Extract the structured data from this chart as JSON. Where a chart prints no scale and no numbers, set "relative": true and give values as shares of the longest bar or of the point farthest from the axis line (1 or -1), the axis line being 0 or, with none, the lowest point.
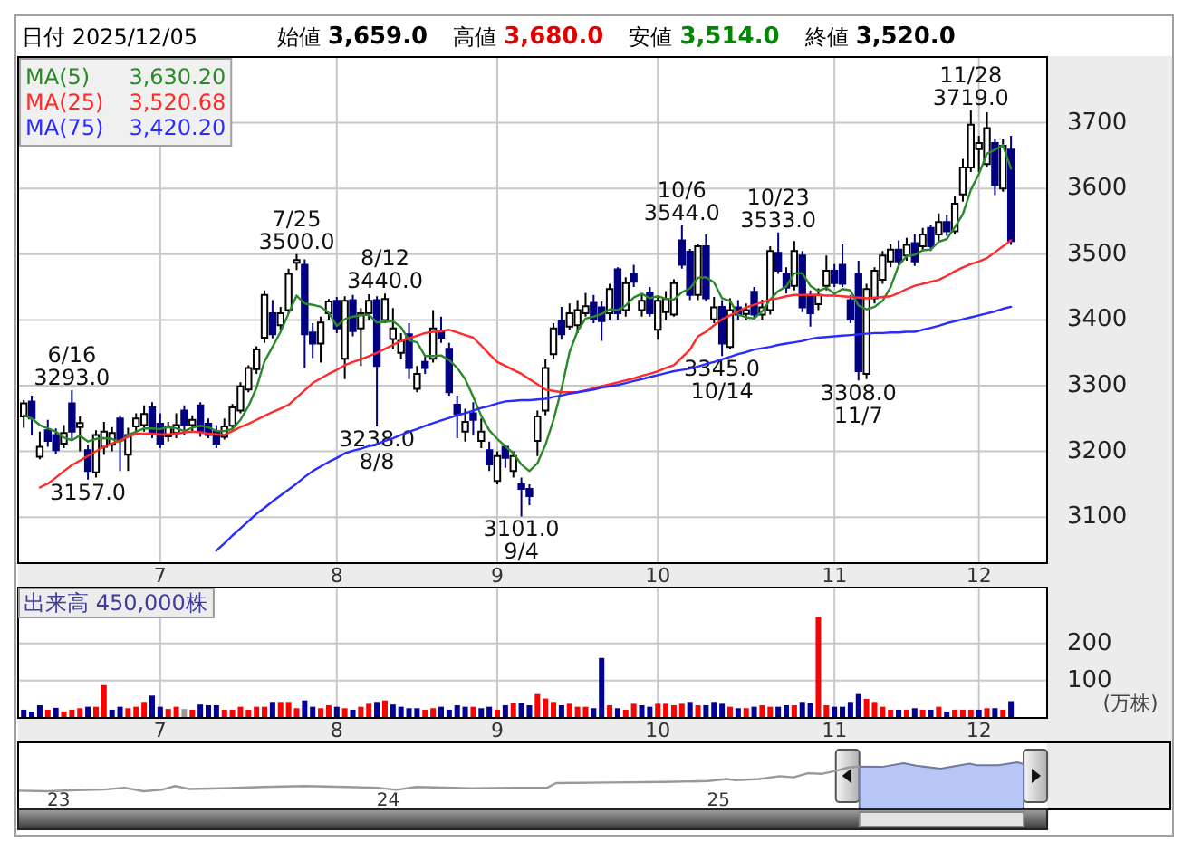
{
  "chart_data": [
    {
      "type": "other",
      "annotations": [
        "日付 2025/12/05",
        "始値",
        "3,659.0",
        "高値",
        "3,680.0",
        "安値",
        "3,514.0",
        "終値",
        "3,520.0"
      ]
    },
    {
      "type": "candlestick",
      "categories": [
        null,
        null,
        null,
        null,
        null,
        null,
        null,
        null,
        null,
        null,
        null,
        null,
        null,
        null,
        null,
        null,
        null,
        "7",
        null,
        null,
        null,
        null,
        null,
        null,
        null,
        null,
        null,
        null,
        null,
        null,
        null,
        null,
        null,
        null,
        null,
        null,
        null,
        null,
        null,
        "8",
        null,
        null,
        null,
        null,
        null,
        null,
        null,
        null,
        null,
        null,
        null,
        null,
        null,
        null,
        null,
        null,
        null,
        null,
        null,
        "9",
        null,
        null,
        null,
        null,
        null,
        null,
        null,
        null,
        null,
        null,
        null,
        null,
        null,
        null,
        null,
        null,
        null,
        null,
        null,
        "10",
        null,
        null,
        null,
        null,
        null,
        null,
        null,
        null,
        null,
        null,
        null,
        null,
        null,
        null,
        null,
        null,
        null,
        null,
        null,
        null,
        null,
        "11",
        null,
        null,
        null,
        null,
        null,
        null,
        null,
        null,
        null,
        null,
        null,
        null,
        null,
        null,
        null,
        null,
        null,
        "12",
        null,
        null,
        null,
        null
      ],
      "ohlc": [
        [
          3253,
          3278,
          3236,
          3273
        ],
        [
          3276,
          3285,
          3225,
          3250
        ],
        [
          3192,
          3230,
          3188,
          3207
        ],
        [
          3232,
          3248,
          3207,
          3216
        ],
        [
          3225,
          3235,
          3196,
          3202
        ],
        [
          3212,
          3240,
          3205,
          3228
        ],
        [
          3273,
          3293,
          3216,
          3230
        ],
        [
          3237,
          3253,
          3200,
          3243
        ],
        [
          3202,
          3210,
          3157,
          3170
        ],
        [
          3168,
          3232,
          3160,
          3225
        ],
        [
          3207,
          3245,
          3195,
          3230
        ],
        [
          3210,
          3237,
          3200,
          3228
        ],
        [
          3250,
          3255,
          3170,
          3217
        ],
        [
          3195,
          3236,
          3170,
          3225
        ],
        [
          3238,
          3258,
          3230,
          3250
        ],
        [
          3240,
          3270,
          3230,
          3257
        ],
        [
          3267,
          3275,
          3220,
          3227
        ],
        [
          3242,
          3258,
          3205,
          3212
        ],
        [
          3223,
          3245,
          3215,
          3238
        ],
        [
          3228,
          3258,
          3220,
          3240
        ],
        [
          3262,
          3270,
          3225,
          3240
        ],
        [
          3240,
          3255,
          3230,
          3248
        ],
        [
          3270,
          3275,
          3222,
          3230
        ],
        [
          3242,
          3250,
          3220,
          3225
        ],
        [
          3230,
          3240,
          3205,
          3212
        ],
        [
          3222,
          3250,
          3218,
          3238
        ],
        [
          3239,
          3272,
          3232,
          3267
        ],
        [
          3262,
          3305,
          3258,
          3299
        ],
        [
          3294,
          3331,
          3290,
          3327
        ],
        [
          3325,
          3360,
          3318,
          3355
        ],
        [
          3373,
          3445,
          3365,
          3438
        ],
        [
          3410,
          3430,
          3372,
          3378
        ],
        [
          3392,
          3420,
          3385,
          3410
        ],
        [
          3415,
          3478,
          3410,
          3470
        ],
        [
          3487,
          3500,
          3476,
          3491
        ],
        [
          3484,
          3492,
          3327,
          3378
        ],
        [
          3381,
          3395,
          3342,
          3364
        ],
        [
          3364,
          3405,
          3335,
          3396
        ],
        [
          3410,
          3432,
          3400,
          3428
        ],
        [
          3429,
          3435,
          3380,
          3387
        ],
        [
          3341,
          3436,
          3310,
          3429
        ],
        [
          3430,
          3438,
          3375,
          3383
        ],
        [
          3387,
          3418,
          3330,
          3410
        ],
        [
          3410,
          3439,
          3400,
          3429
        ],
        [
          3430,
          3436,
          3238,
          3330
        ],
        [
          3400,
          3440,
          3395,
          3432
        ],
        [
          3371,
          3418,
          3355,
          3387
        ],
        [
          3350,
          3380,
          3340,
          3368
        ],
        [
          3378,
          3395,
          3310,
          3327
        ],
        [
          3295,
          3330,
          3290,
          3318
        ],
        [
          3336,
          3346,
          3318,
          3327
        ],
        [
          3341,
          3415,
          3335,
          3387
        ],
        [
          3382,
          3405,
          3365,
          3373
        ],
        [
          3356,
          3365,
          3285,
          3290
        ],
        [
          3271,
          3285,
          3220,
          3257
        ],
        [
          3230,
          3265,
          3215,
          3245
        ],
        [
          3258,
          3275,
          3225,
          3248
        ],
        [
          3216,
          3250,
          3205,
          3230
        ],
        [
          3202,
          3215,
          3170,
          3180
        ],
        [
          3155,
          3200,
          3150,
          3193
        ],
        [
          3207,
          3210,
          3175,
          3190
        ],
        [
          3170,
          3200,
          3160,
          3193
        ],
        [
          3150,
          3160,
          3101,
          3143
        ],
        [
          3143,
          3150,
          3118,
          3132
        ],
        [
          3216,
          3262,
          3193,
          3253
        ],
        [
          3262,
          3340,
          3255,
          3327
        ],
        [
          3348,
          3395,
          3340,
          3387
        ],
        [
          3399,
          3420,
          3370,
          3378
        ],
        [
          3390,
          3425,
          3385,
          3410
        ],
        [
          3392,
          3430,
          3380,
          3415
        ],
        [
          3410,
          3441,
          3405,
          3421
        ],
        [
          3426,
          3438,
          3395,
          3401
        ],
        [
          3419,
          3428,
          3368,
          3398
        ],
        [
          3410,
          3455,
          3400,
          3447
        ],
        [
          3477,
          3480,
          3400,
          3410
        ],
        [
          3415,
          3465,
          3405,
          3456
        ],
        [
          3470,
          3484,
          3450,
          3458
        ],
        [
          3415,
          3438,
          3405,
          3429
        ],
        [
          3442,
          3450,
          3405,
          3410
        ],
        [
          3385,
          3437,
          3370,
          3429
        ],
        [
          3412,
          3444,
          3400,
          3432
        ],
        [
          3408,
          3462,
          3405,
          3456
        ],
        [
          3521,
          3544,
          3478,
          3484
        ],
        [
          3504,
          3508,
          3430,
          3438
        ],
        [
          3438,
          3515,
          3430,
          3512
        ],
        [
          3512,
          3530,
          3428,
          3433
        ],
        [
          3401,
          3435,
          3395,
          3419
        ],
        [
          3420,
          3430,
          3345,
          3364
        ],
        [
          3359,
          3433,
          3355,
          3415
        ],
        [
          3419,
          3430,
          3400,
          3408
        ],
        [
          3409,
          3425,
          3400,
          3415
        ],
        [
          3443,
          3450,
          3402,
          3408
        ],
        [
          3408,
          3431,
          3400,
          3419
        ],
        [
          3415,
          3512,
          3408,
          3505
        ],
        [
          3502,
          3533,
          3470,
          3475
        ],
        [
          3470,
          3480,
          3440,
          3449
        ],
        [
          3452,
          3520,
          3445,
          3505
        ],
        [
          3498,
          3505,
          3412,
          3419
        ],
        [
          3438,
          3445,
          3390,
          3410
        ],
        [
          3424,
          3448,
          3415,
          3438
        ],
        [
          3452,
          3498,
          3445,
          3475
        ],
        [
          3475,
          3485,
          3450,
          3456
        ],
        [
          3484,
          3515,
          3450,
          3455
        ],
        [
          3430,
          3438,
          3395,
          3401
        ],
        [
          3470,
          3490,
          3308,
          3322
        ],
        [
          3318,
          3455,
          3310,
          3447
        ],
        [
          3433,
          3480,
          3425,
          3475
        ],
        [
          3461,
          3505,
          3455,
          3498
        ],
        [
          3489,
          3515,
          3480,
          3507
        ],
        [
          3507,
          3521,
          3480,
          3489
        ],
        [
          3498,
          3525,
          3490,
          3514
        ],
        [
          3517,
          3531,
          3482,
          3489
        ],
        [
          3512,
          3540,
          3505,
          3530
        ],
        [
          3540,
          3545,
          3505,
          3512
        ],
        [
          3530,
          3562,
          3520,
          3549
        ],
        [
          3549,
          3560,
          3528,
          3535
        ],
        [
          3535,
          3589,
          3530,
          3577
        ],
        [
          3591,
          3645,
          3580,
          3632
        ],
        [
          3632,
          3719,
          3625,
          3697
        ],
        [
          3660,
          3680,
          3625,
          3669
        ],
        [
          3637,
          3716,
          3632,
          3692
        ],
        [
          3669,
          3675,
          3590,
          3605
        ],
        [
          3600,
          3676,
          3595,
          3665
        ],
        [
          3659,
          3680,
          3514,
          3520
        ]
      ],
      "colors": [
        "#ffffff",
        "#000080",
        "#ffffff",
        "#000080",
        "#000080",
        "#ffffff",
        "#000080",
        "#ffffff",
        "#000080",
        "#ffffff",
        "#ffffff",
        "#ffffff",
        "#000080",
        "#ffffff",
        "#ffffff",
        "#ffffff",
        "#000080",
        "#000080",
        "#ffffff",
        "#ffffff",
        "#000080",
        "#ffffff",
        "#000080",
        "#000080",
        "#000080",
        "#ffffff",
        "#ffffff",
        "#ffffff",
        "#ffffff",
        "#ffffff",
        "#ffffff",
        "#000080",
        "#ffffff",
        "#ffffff",
        "#ffffff",
        "#000080",
        "#000080",
        "#ffffff",
        "#ffffff",
        "#000080",
        "#ffffff",
        "#000080",
        "#ffffff",
        "#ffffff",
        "#000080",
        "#ffffff",
        "#ffffff",
        "#ffffff",
        "#000080",
        "#ffffff",
        "#000080",
        "#ffffff",
        "#000080",
        "#000080",
        "#000080",
        "#ffffff",
        "#000080",
        "#ffffff",
        "#000080",
        "#ffffff",
        "#000080",
        "#ffffff",
        "#000080",
        "#000080",
        "#ffffff",
        "#ffffff",
        "#ffffff",
        "#000080",
        "#ffffff",
        "#ffffff",
        "#ffffff",
        "#000080",
        "#000080",
        "#ffffff",
        "#000080",
        "#ffffff",
        "#000080",
        "#ffffff",
        "#000080",
        "#ffffff",
        "#ffffff",
        "#ffffff",
        "#000080",
        "#000080",
        "#ffffff",
        "#000080",
        "#ffffff",
        "#000080",
        "#ffffff",
        "#000080",
        "#ffffff",
        "#000080",
        "#ffffff",
        "#ffffff",
        "#000080",
        "#000080",
        "#ffffff",
        "#000080",
        "#000080",
        "#ffffff",
        "#ffffff",
        "#000080",
        "#000080",
        "#000080",
        "#000080",
        "#ffffff",
        "#ffffff",
        "#ffffff",
        "#ffffff",
        "#000080",
        "#ffffff",
        "#000080",
        "#ffffff",
        "#000080",
        "#ffffff",
        "#000080",
        "#ffffff",
        "#ffffff",
        "#ffffff",
        "#ffffff",
        "#ffffff",
        "#000080",
        "#ffffff",
        "#000080"
      ],
      "series": [
        {
          "name": "MA(5) 3,630.20",
          "type": "line",
          "color": "#2a8a2a",
          "values": [
            3255,
            3250,
            3240,
            3235,
            3230,
            3221,
            3217,
            3224,
            3215,
            3219,
            3220,
            3219,
            3214,
            3225,
            3230,
            3235,
            3235,
            3234,
            3237,
            3235,
            3231,
            3236,
            3239,
            3237,
            3231,
            3231,
            3234,
            3248,
            3269,
            3297,
            3337,
            3359,
            3382,
            3410,
            3437,
            3425,
            3423,
            3420,
            3411,
            3391,
            3401,
            3405,
            3407,
            3408,
            3396,
            3397,
            3398,
            3389,
            3369,
            3366,
            3345,
            3345,
            3346,
            3339,
            3327,
            3310,
            3283,
            3254,
            3232,
            3219,
            3208,
            3197,
            3180,
            3170,
            3182,
            3210,
            3248,
            3295,
            3351,
            3383,
            3402,
            3405,
            3409,
            3416,
            3415,
            3422,
            3434,
            3440,
            3433,
            3436,
            3432,
            3431,
            3442,
            3448,
            3464,
            3465,
            3457,
            3433,
            3429,
            3408,
            3404,
            3402,
            3413,
            3431,
            3444,
            3451,
            3471,
            3471,
            3452,
            3444,
            3449,
            3440,
            3447,
            3445,
            3422,
            3416,
            3420,
            3429,
            3450,
            3483,
            3497,
            3499,
            3506,
            3507,
            3519,
            3523,
            3541,
            3561,
            3598,
            3622,
            3653,
            3659,
            3666,
            3630
          ]
        },
        {
          "name": "MA(25) 3,520.68",
          "type": "line",
          "color": "#ff2a2a",
          "values": [
            null,
            null,
            3145,
            3151,
            3160,
            3170,
            3179,
            3186,
            3193,
            3200,
            3207,
            3212,
            3217,
            3222,
            3227,
            3227,
            3227,
            3226,
            3226,
            3227,
            3229,
            3230,
            3229,
            3227,
            3226,
            3225,
            3231,
            3237,
            3242,
            3248,
            3254,
            3260,
            3265,
            3271,
            3282,
            3293,
            3304,
            3311,
            3318,
            3324,
            3331,
            3336,
            3340,
            3345,
            3350,
            3356,
            3362,
            3368,
            3372,
            3376,
            3380,
            3382,
            3383,
            3385,
            3381,
            3377,
            3373,
            3361,
            3348,
            3336,
            3330,
            3324,
            3318,
            3310,
            3302,
            3294,
            3292,
            3290,
            3290,
            3290,
            3293,
            3296,
            3299,
            3302,
            3305,
            3308,
            3311,
            3315,
            3318,
            3322,
            3327,
            3331,
            3343,
            3355,
            3375,
            3382,
            3392,
            3401,
            3407,
            3413,
            3419,
            3423,
            3427,
            3431,
            3433,
            3436,
            3438,
            3438,
            3438,
            3438,
            3437,
            3437,
            3436,
            3435,
            3434,
            3433,
            3434,
            3435,
            3436,
            3441,
            3447,
            3452,
            3455,
            3458,
            3461,
            3467,
            3474,
            3480,
            3485,
            3489,
            3494,
            3503,
            3512,
            3521
          ]
        },
        {
          "name": "MA(75) 3,420.20",
          "type": "line",
          "color": "#2b2bff",
          "values": [
            null,
            null,
            null,
            null,
            null,
            null,
            null,
            null,
            null,
            null,
            null,
            null,
            null,
            null,
            null,
            null,
            null,
            null,
            null,
            null,
            null,
            null,
            null,
            null,
            3049,
            3060,
            3072,
            3083,
            3094,
            3105,
            3114,
            3124,
            3133,
            3142,
            3151,
            3161,
            3170,
            3177,
            3184,
            3190,
            3197,
            3201,
            3204,
            3208,
            3211,
            3216,
            3220,
            3225,
            3230,
            3234,
            3239,
            3243,
            3247,
            3251,
            3255,
            3258,
            3262,
            3266,
            3269,
            3273,
            3276,
            3277,
            3278,
            3278,
            3279,
            3280,
            3283,
            3285,
            3288,
            3290,
            3292,
            3294,
            3297,
            3299,
            3301,
            3304,
            3307,
            3310,
            3313,
            3316,
            3319,
            3322,
            3324,
            3326,
            3329,
            3333,
            3336,
            3340,
            3344,
            3348,
            3351,
            3355,
            3357,
            3359,
            3362,
            3364,
            3366,
            3368,
            3371,
            3373,
            3374,
            3375,
            3376,
            3377,
            3378,
            3379,
            3380,
            3380,
            3381,
            3381,
            3382,
            3382,
            3385,
            3388,
            3391,
            3395,
            3398,
            3401,
            3404,
            3407,
            3410,
            3413,
            3417,
            3420
          ]
        }
      ],
      "ylim": [
        3030,
        3800
      ],
      "yticks": [
        3100,
        3200,
        3300,
        3400,
        3500,
        3600,
        3700
      ],
      "grid": true,
      "legend": "top left",
      "annotations": [
        {
          "text": "6/16\n3293.0",
          "y": 3293
        },
        {
          "text": "3157.0",
          "y": 3157
        },
        {
          "text": "7/25\n3500.0",
          "y": 3500
        },
        {
          "text": "8/12\n3440.0",
          "y": 3440
        },
        {
          "text": "3238.0\n8/8",
          "y": 3238
        },
        {
          "text": "3101.0\n9/4",
          "y": 3101
        },
        {
          "text": "10/6\n3544.0",
          "y": 3544
        },
        {
          "text": "3345.0\n10/14",
          "y": 3345
        },
        {
          "text": "10/23\n3533.0",
          "y": 3533
        },
        {
          "text": "3308.0\n11/7",
          "y": 3308
        },
        {
          "text": "11/28\n3719.0",
          "y": 3719
        }
      ]
    },
    {
      "type": "bar",
      "title": "出来高 450,000株",
      "ylabel": "(万株)",
      "categories": [
        null,
        null,
        null,
        null,
        null,
        null,
        null,
        null,
        null,
        null,
        null,
        null,
        null,
        null,
        null,
        null,
        null,
        "7",
        null,
        null,
        null,
        null,
        null,
        null,
        null,
        null,
        null,
        null,
        null,
        null,
        null,
        null,
        null,
        null,
        null,
        null,
        null,
        null,
        null,
        "8",
        null,
        null,
        null,
        null,
        null,
        null,
        null,
        null,
        null,
        null,
        null,
        null,
        null,
        null,
        null,
        null,
        null,
        null,
        null,
        "9",
        null,
        null,
        null,
        null,
        null,
        null,
        null,
        null,
        null,
        null,
        null,
        null,
        null,
        null,
        null,
        null,
        null,
        null,
        null,
        "10",
        null,
        null,
        null,
        null,
        null,
        null,
        null,
        null,
        null,
        null,
        null,
        null,
        null,
        null,
        null,
        null,
        null,
        null,
        null,
        null,
        null,
        "11",
        null,
        null,
        null,
        null,
        null,
        null,
        null,
        null,
        null,
        null,
        null,
        null,
        null,
        null,
        null,
        null,
        null,
        "12",
        null,
        null,
        null,
        null
      ],
      "values": [
        22,
        17,
        34,
        22,
        27,
        17,
        22,
        26,
        30,
        30,
        88,
        22,
        30,
        26,
        30,
        43,
        60,
        30,
        24,
        30,
        24,
        22,
        36,
        34,
        34,
        22,
        22,
        30,
        22,
        30,
        30,
        43,
        43,
        43,
        26,
        47,
        30,
        26,
        34,
        30,
        26,
        22,
        30,
        38,
        43,
        47,
        36,
        30,
        26,
        26,
        22,
        26,
        30,
        22,
        34,
        30,
        30,
        26,
        30,
        22,
        34,
        40,
        40,
        34,
        64,
        52,
        43,
        34,
        38,
        30,
        30,
        26,
        161,
        34,
        26,
        22,
        38,
        34,
        30,
        38,
        38,
        34,
        38,
        43,
        34,
        34,
        43,
        38,
        30,
        26,
        26,
        30,
        34,
        30,
        30,
        34,
        34,
        43,
        40,
        271,
        34,
        30,
        30,
        43,
        64,
        51,
        43,
        30,
        22,
        22,
        22,
        26,
        22,
        22,
        30,
        17,
        22,
        22,
        22,
        22,
        26,
        26,
        22,
        45
      ],
      "colors": [
        "#000099",
        "#000099",
        "#000099",
        "#ff0000",
        "#000099",
        "#ff0000",
        "#ff0000",
        "#ff0000",
        "#000099",
        "#ff0000",
        "#ff0000",
        "#000099",
        "#000099",
        "#ff0000",
        "#ff0000",
        "#ff0000",
        "#000099",
        "#000099",
        "#ff0000",
        "#ff0000",
        "#999999",
        "#ff0000",
        "#000099",
        "#000099",
        "#000099",
        "#ff0000",
        "#ff0000",
        "#ff0000",
        "#ff0000",
        "#ff0000",
        "#ff0000",
        "#000099",
        "#ff0000",
        "#ff0000",
        "#ff0000",
        "#000099",
        "#000099",
        "#ff0000",
        "#ff0000",
        "#000099",
        "#ff0000",
        "#000099",
        "#ff0000",
        "#ff0000",
        "#000099",
        "#ff0000",
        "#000099",
        "#000099",
        "#000099",
        "#000099",
        "#ff0000",
        "#ff0000",
        "#000099",
        "#000099",
        "#000099",
        "#000099",
        "#ff0000",
        "#000099",
        "#000099",
        "#ff0000",
        "#000099",
        "#ff0000",
        "#000099",
        "#000099",
        "#ff0000",
        "#ff0000",
        "#ff0000",
        "#000099",
        "#ff0000",
        "#ff0000",
        "#ff0000",
        "#000099",
        "#000099",
        "#ff0000",
        "#000099",
        "#ff0000",
        "#ff0000",
        "#000099",
        "#000099",
        "#ff0000",
        "#ff0000",
        "#ff0000",
        "#ff0000",
        "#000099",
        "#ff0000",
        "#000099",
        "#000099",
        "#000099",
        "#ff0000",
        "#000099",
        "#ff0000",
        "#000099",
        "#ff0000",
        "#ff0000",
        "#000099",
        "#000099",
        "#ff0000",
        "#000099",
        "#000099",
        "#ff0000",
        "#ff0000",
        "#000099",
        "#000099",
        "#000099",
        "#000099",
        "#ff0000",
        "#ff0000",
        "#ff0000",
        "#ff0000",
        "#000099",
        "#ff0000",
        "#000099",
        "#ff0000",
        "#000099",
        "#ff0000",
        "#000099",
        "#ff0000",
        "#ff0000",
        "#ff0000",
        "#000099",
        "#ff0000",
        "#000099",
        "#ff0000",
        "#000099"
      ],
      "ylim": [
        0,
        350
      ],
      "yticks": [
        100,
        200
      ],
      "grid": true
    },
    {
      "type": "line",
      "relative": true,
      "series": [
        {
          "type": "line",
          "color": "#999999",
          "x": [
            "2022-11-17",
            "2022-12-20",
            "2023-01-20",
            "2023-02-20",
            "2023-03-15",
            "2023-04-05",
            "2023-04-25",
            "2023-05-10",
            "2023-05-25",
            "2023-07-01",
            "2023-08-15",
            "2023-10-01",
            "2023-11-15",
            "2023-12-20",
            "2024-01-10",
            "2024-02-01",
            "2024-04-01",
            "2024-05-20",
            "2024-06-25",
            "2024-07-05",
            "2024-09-01",
            "2024-11-01",
            "2024-12-20",
            "2025-01-10",
            "2025-01-20",
            "2025-02-15",
            "2025-03-10",
            "2025-03-25",
            "2025-04-10",
            "2025-04-25",
            "2025-05-10",
            "2025-05-25",
            "2025-06-06"
          ],
          "values": [
            0.02,
            0,
            0.04,
            0.06,
            0.12,
            0,
            0.05,
            0.18,
            0.08,
            0.1,
            0.15,
            0.18,
            0.15,
            0.12,
            0.05,
            0.15,
            0.1,
            0.12,
            0.12,
            0.28,
            0.3,
            0.32,
            0.35,
            0.42,
            0.38,
            0.42,
            0.52,
            0.48,
            0.62,
            0.6,
            0.7,
            0.82,
            0.85
          ]
        },
        {
          "type": "area",
          "color": "#b8c6f6",
          "x": [
            "2025-06-06",
            "2025-07-01",
            "2025-07-25",
            "2025-08-08",
            "2025-09-04",
            "2025-10-06",
            "2025-10-14",
            "2025-11-07",
            "2025-11-28",
            "2025-12-05"
          ],
          "values": [
            0.85,
            0.84,
            0.97,
            0.88,
            0.78,
            0.95,
            0.9,
            0.9,
            1,
            0.94
          ]
        }
      ],
      "xlim": [
        "2022-11-17",
        "2025-12-31"
      ],
      "xticks": [
        {
          "value": "2023",
          "label": "23"
        },
        {
          "value": "2024",
          "label": "24"
        },
        {
          "value": "2025",
          "label": "25"
        }
      ]
    }
  ]
}
